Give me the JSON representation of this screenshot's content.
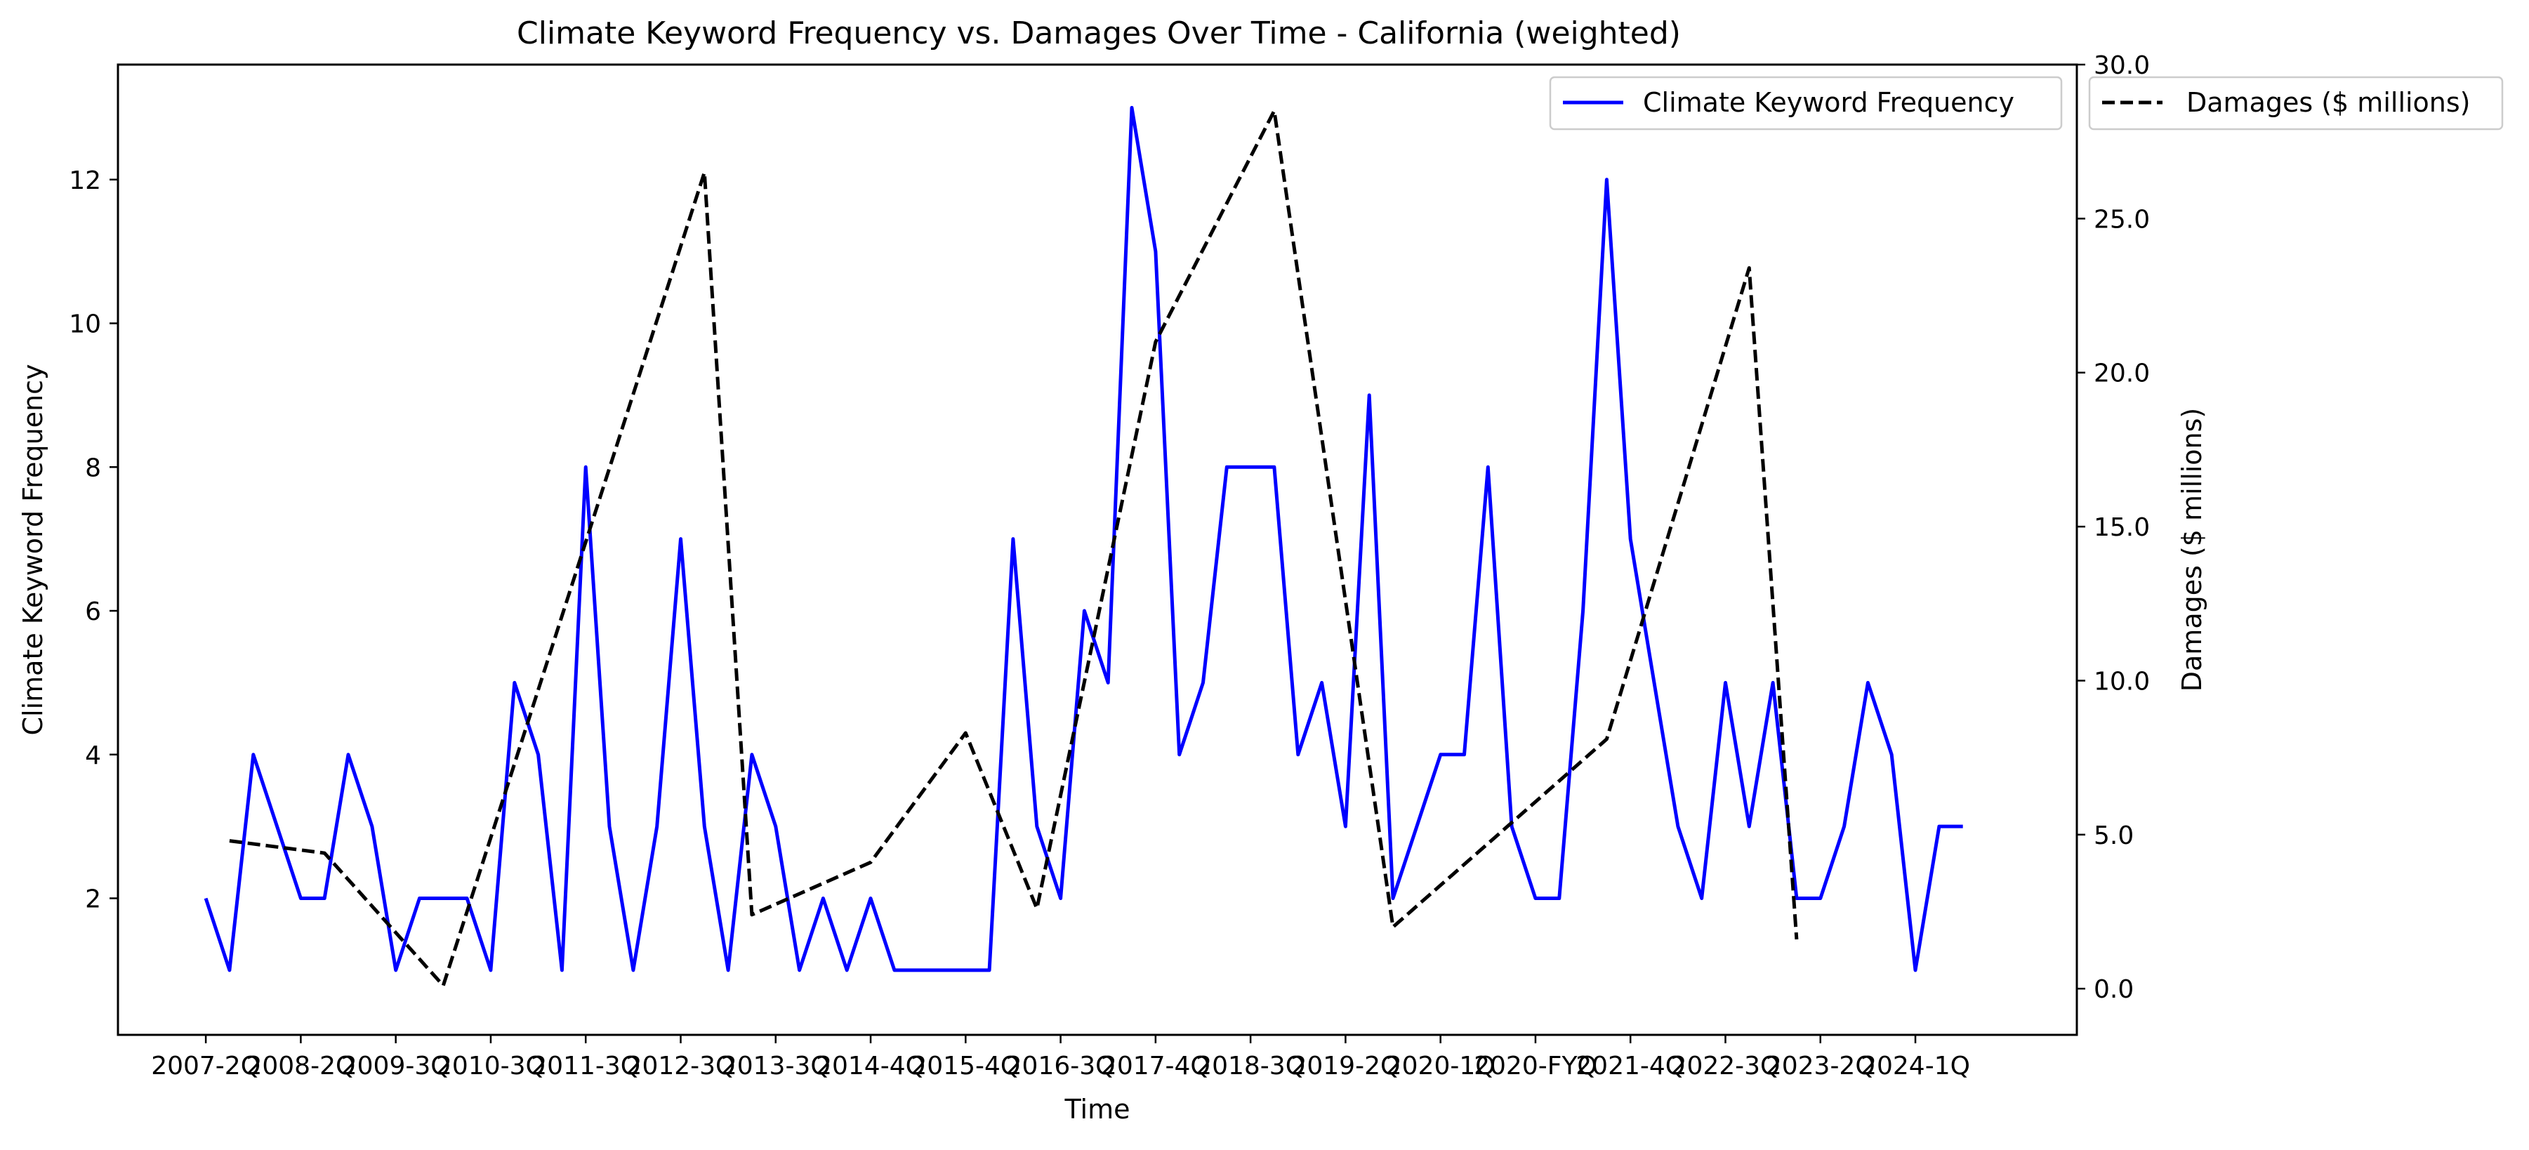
{
  "chart_data": {
    "type": "line",
    "title": "Climate Keyword Frequency vs. Damages Over Time - California (weighted)",
    "xlabel": "Time",
    "ylabel_left": "Climate Keyword Frequency",
    "ylabel_right": "Damages ($ millions)",
    "x_tick_labels": [
      "2007-2Q",
      "2008-2Q",
      "2009-3Q",
      "2010-3Q",
      "2011-3Q",
      "2012-3Q",
      "2013-3Q",
      "2014-4Q",
      "2015-4Q",
      "2016-3Q",
      "2017-4Q",
      "2018-3Q",
      "2019-2Q",
      "2020-1Q",
      "2020-FYQ",
      "2021-4Q",
      "2022-3Q",
      "2023-2Q",
      "2024-1Q"
    ],
    "x_tick_index": [
      0,
      4,
      8,
      12,
      16,
      20,
      24,
      28,
      32,
      36,
      40,
      44,
      48,
      52,
      56,
      60,
      64,
      68,
      72
    ],
    "y_left_ticks": [
      2,
      4,
      6,
      8,
      10,
      12
    ],
    "y_right_ticks": [
      "0.0",
      "5.0",
      "10.0",
      "15.0",
      "20.0",
      "25.0",
      "30.0"
    ],
    "ylim_left": [
      0.1,
      13.6
    ],
    "ylim_right": [
      -1.5,
      30.0
    ],
    "xlim": [
      -3.7,
      78.8
    ],
    "grid": false,
    "legend_left": "top-right",
    "legend_right": "outside-top-right",
    "colors": {
      "frequency": "#0000ff",
      "damages": "#000000"
    },
    "series": [
      {
        "name": "Climate Keyword Frequency",
        "axis": "left",
        "style": "solid",
        "x": [
          0,
          1,
          2,
          3,
          4,
          5,
          6,
          7,
          8,
          9,
          10,
          11,
          12,
          13,
          14,
          15,
          16,
          17,
          18,
          19,
          20,
          21,
          22,
          23,
          24,
          25,
          26,
          27,
          28,
          29,
          30,
          31,
          32,
          33,
          34,
          35,
          36,
          37,
          38,
          39,
          40,
          41,
          42,
          43,
          44,
          45,
          46,
          47,
          48,
          49,
          50,
          51,
          52,
          53,
          54,
          55,
          56,
          57,
          58,
          59,
          60,
          61,
          62,
          63,
          64,
          65,
          66,
          67,
          68,
          69,
          70,
          71,
          72,
          73,
          74
        ],
        "values": [
          2,
          1,
          4,
          3,
          2,
          2,
          4,
          3,
          1,
          2,
          2,
          2,
          1,
          5,
          4,
          1,
          8,
          3,
          1,
          3,
          7,
          3,
          1,
          4,
          3,
          1,
          2,
          1,
          2,
          1,
          1,
          1,
          1,
          1,
          7,
          3,
          2,
          6,
          5,
          13,
          11,
          4,
          5,
          8,
          8,
          8,
          4,
          5,
          3,
          9,
          2,
          3,
          4,
          4,
          8,
          3,
          2,
          2,
          6,
          12,
          7,
          5,
          3,
          2,
          5,
          3,
          5,
          2,
          2,
          3,
          5,
          4,
          1,
          3,
          3
        ]
      },
      {
        "name": "Damages ($ millions)",
        "axis": "right",
        "style": "dashed",
        "x": [
          1,
          5,
          10,
          21,
          23,
          28,
          32,
          35,
          40,
          45,
          50,
          59,
          65,
          67
        ],
        "values": [
          4.8,
          4.4,
          0.1,
          26.5,
          2.4,
          4.1,
          8.3,
          2.6,
          21.0,
          28.5,
          2.0,
          8.1,
          23.4,
          1.6
        ]
      }
    ]
  }
}
